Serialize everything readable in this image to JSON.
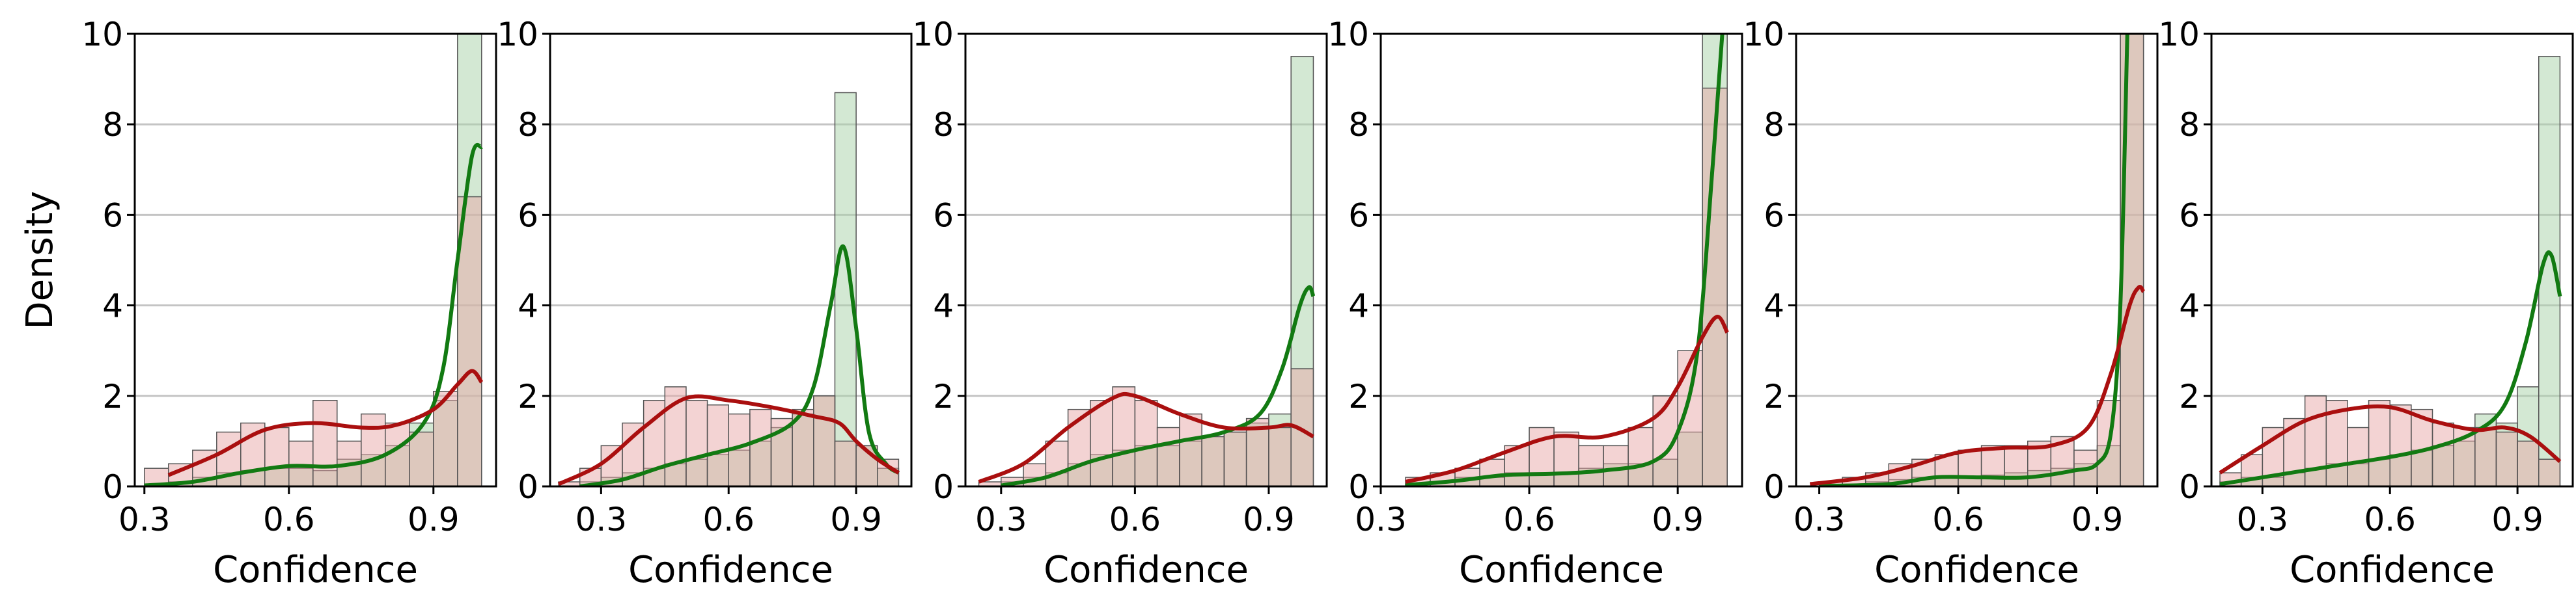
{
  "colors": {
    "red_fill": "#e8a7a7",
    "red_line": "#aa0f0f",
    "green_fill": "#a7d2a7",
    "green_line": "#127a12",
    "grid": "#c4c4c4",
    "bar_edge": "#555555"
  },
  "chart_data": [
    {
      "type": "histogram",
      "xlabel": "Confidence",
      "ylabel": "Density",
      "xlim": [
        0.28,
        1.03
      ],
      "ylim": [
        0,
        10
      ],
      "xticks": [
        "0.3",
        "0.6",
        "0.9"
      ],
      "yticks": [
        "0",
        "2",
        "4",
        "6",
        "8",
        "10"
      ],
      "grid": "y",
      "bins": [
        0.3,
        0.35,
        0.4,
        0.45,
        0.5,
        0.55,
        0.6,
        0.65,
        0.7,
        0.75,
        0.8,
        0.85,
        0.9,
        0.95,
        1.0
      ],
      "series": [
        {
          "color": "red",
          "hist": [
            0.4,
            0.5,
            0.8,
            1.2,
            1.4,
            1.3,
            1.0,
            1.9,
            1.0,
            1.6,
            1.4,
            1.2,
            2.1,
            6.4
          ],
          "kde": [
            [
              0.35,
              0.25
            ],
            [
              0.45,
              0.7
            ],
            [
              0.55,
              1.25
            ],
            [
              0.65,
              1.4
            ],
            [
              0.75,
              1.3
            ],
            [
              0.82,
              1.35
            ],
            [
              0.9,
              1.7
            ],
            [
              0.95,
              2.25
            ],
            [
              0.98,
              2.55
            ],
            [
              1.0,
              2.3
            ]
          ]
        },
        {
          "color": "green",
          "hist": [
            0.05,
            0.1,
            0.2,
            0.3,
            0.35,
            0.4,
            0.4,
            0.35,
            0.6,
            0.7,
            0.9,
            1.4,
            1.9,
            10.0
          ],
          "kde": [
            [
              0.3,
              0.02
            ],
            [
              0.4,
              0.1
            ],
            [
              0.5,
              0.3
            ],
            [
              0.6,
              0.45
            ],
            [
              0.7,
              0.45
            ],
            [
              0.8,
              0.7
            ],
            [
              0.88,
              1.4
            ],
            [
              0.92,
              2.6
            ],
            [
              0.95,
              5.0
            ],
            [
              0.98,
              7.3
            ],
            [
              1.0,
              7.5
            ]
          ]
        }
      ]
    },
    {
      "type": "histogram",
      "xlabel": "Confidence",
      "ylabel": "",
      "xlim": [
        0.18,
        1.03
      ],
      "ylim": [
        0,
        10
      ],
      "xticks": [
        "0.3",
        "0.6",
        "0.9"
      ],
      "yticks": [
        "0",
        "2",
        "4",
        "6",
        "8",
        "10"
      ],
      "grid": "y",
      "bins": [
        0.2,
        0.25,
        0.3,
        0.35,
        0.4,
        0.45,
        0.5,
        0.55,
        0.6,
        0.65,
        0.7,
        0.75,
        0.8,
        0.85,
        0.9,
        0.95,
        1.0
      ],
      "series": [
        {
          "color": "red",
          "hist": [
            0.1,
            0.4,
            0.9,
            1.4,
            1.9,
            2.2,
            1.9,
            1.8,
            1.6,
            1.7,
            1.5,
            1.7,
            2.0,
            1.0,
            0.9,
            0.6
          ],
          "kde": [
            [
              0.2,
              0.05
            ],
            [
              0.3,
              0.5
            ],
            [
              0.4,
              1.3
            ],
            [
              0.5,
              1.95
            ],
            [
              0.6,
              1.9
            ],
            [
              0.7,
              1.75
            ],
            [
              0.8,
              1.55
            ],
            [
              0.86,
              1.4
            ],
            [
              0.9,
              1.0
            ],
            [
              0.95,
              0.6
            ],
            [
              1.0,
              0.3
            ]
          ]
        },
        {
          "color": "green",
          "hist": [
            0.0,
            0.1,
            0.2,
            0.3,
            0.4,
            0.5,
            0.6,
            0.7,
            0.8,
            1.0,
            1.3,
            1.6,
            2.0,
            8.7,
            0.9,
            0.4
          ],
          "kde": [
            [
              0.25,
              0.0
            ],
            [
              0.35,
              0.15
            ],
            [
              0.45,
              0.45
            ],
            [
              0.55,
              0.7
            ],
            [
              0.65,
              0.95
            ],
            [
              0.75,
              1.4
            ],
            [
              0.8,
              2.2
            ],
            [
              0.84,
              4.0
            ],
            [
              0.87,
              5.3
            ],
            [
              0.9,
              3.5
            ],
            [
              0.93,
              1.2
            ],
            [
              0.97,
              0.5
            ],
            [
              1.0,
              0.3
            ]
          ]
        }
      ]
    },
    {
      "type": "histogram",
      "xlabel": "Confidence",
      "ylabel": "",
      "xlim": [
        0.22,
        1.03
      ],
      "ylim": [
        0,
        10
      ],
      "xticks": [
        "0.3",
        "0.6",
        "0.9"
      ],
      "yticks": [
        "0",
        "2",
        "4",
        "6",
        "8",
        "10"
      ],
      "grid": "y",
      "bins": [
        0.25,
        0.3,
        0.35,
        0.4,
        0.45,
        0.5,
        0.55,
        0.6,
        0.65,
        0.7,
        0.75,
        0.8,
        0.85,
        0.9,
        0.95,
        1.0
      ],
      "series": [
        {
          "color": "red",
          "hist": [
            0.1,
            0.2,
            0.5,
            1.0,
            1.7,
            1.9,
            2.2,
            1.9,
            1.3,
            1.6,
            1.1,
            1.2,
            1.5,
            1.3,
            2.6
          ],
          "kde": [
            [
              0.25,
              0.1
            ],
            [
              0.35,
              0.5
            ],
            [
              0.45,
              1.3
            ],
            [
              0.55,
              1.95
            ],
            [
              0.6,
              2.0
            ],
            [
              0.7,
              1.6
            ],
            [
              0.8,
              1.3
            ],
            [
              0.9,
              1.3
            ],
            [
              0.95,
              1.35
            ],
            [
              1.0,
              1.1
            ]
          ]
        },
        {
          "color": "green",
          "hist": [
            0.0,
            0.1,
            0.2,
            0.3,
            0.5,
            0.7,
            0.8,
            0.9,
            0.9,
            1.0,
            1.1,
            1.2,
            1.4,
            1.6,
            9.5
          ],
          "kde": [
            [
              0.3,
              0.02
            ],
            [
              0.4,
              0.2
            ],
            [
              0.5,
              0.55
            ],
            [
              0.6,
              0.8
            ],
            [
              0.7,
              1.0
            ],
            [
              0.8,
              1.2
            ],
            [
              0.88,
              1.6
            ],
            [
              0.93,
              2.6
            ],
            [
              0.97,
              4.0
            ],
            [
              0.99,
              4.4
            ],
            [
              1.0,
              4.2
            ]
          ]
        }
      ]
    },
    {
      "type": "histogram",
      "xlabel": "Confidence",
      "ylabel": "",
      "xlim": [
        0.3,
        1.03
      ],
      "ylim": [
        0,
        10
      ],
      "xticks": [
        "0.3",
        "0.6",
        "0.9"
      ],
      "yticks": [
        "0",
        "2",
        "4",
        "6",
        "8",
        "10"
      ],
      "grid": "y",
      "bins": [
        0.35,
        0.4,
        0.45,
        0.5,
        0.55,
        0.6,
        0.65,
        0.7,
        0.75,
        0.8,
        0.85,
        0.9,
        0.95,
        1.0
      ],
      "series": [
        {
          "color": "red",
          "hist": [
            0.2,
            0.3,
            0.4,
            0.6,
            0.9,
            1.3,
            1.2,
            0.9,
            0.9,
            1.3,
            2.0,
            3.0,
            8.8
          ],
          "kde": [
            [
              0.35,
              0.1
            ],
            [
              0.45,
              0.35
            ],
            [
              0.55,
              0.75
            ],
            [
              0.65,
              1.1
            ],
            [
              0.75,
              1.1
            ],
            [
              0.85,
              1.5
            ],
            [
              0.9,
              2.2
            ],
            [
              0.95,
              3.3
            ],
            [
              0.98,
              3.75
            ],
            [
              1.0,
              3.4
            ]
          ]
        },
        {
          "color": "green",
          "hist": [
            0.05,
            0.1,
            0.2,
            0.2,
            0.3,
            0.3,
            0.3,
            0.4,
            0.5,
            0.5,
            0.6,
            1.2,
            10.0
          ],
          "kde": [
            [
              0.35,
              0.03
            ],
            [
              0.45,
              0.12
            ],
            [
              0.55,
              0.25
            ],
            [
              0.65,
              0.28
            ],
            [
              0.75,
              0.35
            ],
            [
              0.85,
              0.55
            ],
            [
              0.9,
              1.2
            ],
            [
              0.94,
              3.0
            ],
            [
              0.97,
              7.0
            ],
            [
              0.99,
              10.0
            ]
          ]
        }
      ]
    },
    {
      "type": "histogram",
      "xlabel": "Confidence",
      "ylabel": "",
      "xlim": [
        0.25,
        1.03
      ],
      "ylim": [
        0,
        10
      ],
      "xticks": [
        "0.3",
        "0.6",
        "0.9"
      ],
      "yticks": [
        "0",
        "2",
        "4",
        "6",
        "8",
        "10"
      ],
      "grid": "y",
      "bins": [
        0.3,
        0.35,
        0.4,
        0.45,
        0.5,
        0.55,
        0.6,
        0.65,
        0.7,
        0.75,
        0.8,
        0.85,
        0.9,
        0.95,
        1.0
      ],
      "series": [
        {
          "color": "red",
          "hist": [
            0.1,
            0.2,
            0.3,
            0.5,
            0.6,
            0.7,
            0.8,
            0.9,
            0.9,
            1.0,
            1.1,
            0.8,
            1.9,
            10.0
          ],
          "kde": [
            [
              0.28,
              0.05
            ],
            [
              0.4,
              0.2
            ],
            [
              0.5,
              0.45
            ],
            [
              0.6,
              0.75
            ],
            [
              0.7,
              0.85
            ],
            [
              0.8,
              0.9
            ],
            [
              0.88,
              1.3
            ],
            [
              0.93,
              2.5
            ],
            [
              0.97,
              4.0
            ],
            [
              0.99,
              4.4
            ],
            [
              1.0,
              4.3
            ]
          ]
        },
        {
          "color": "green",
          "hist": [
            0.0,
            0.05,
            0.1,
            0.15,
            0.2,
            0.2,
            0.2,
            0.25,
            0.3,
            0.35,
            0.4,
            0.5,
            0.9,
            10.0
          ],
          "kde": [
            [
              0.3,
              0.01
            ],
            [
              0.45,
              0.05
            ],
            [
              0.55,
              0.2
            ],
            [
              0.65,
              0.2
            ],
            [
              0.75,
              0.2
            ],
            [
              0.85,
              0.35
            ],
            [
              0.9,
              0.5
            ],
            [
              0.93,
              1.2
            ],
            [
              0.95,
              4.0
            ],
            [
              0.965,
              10.0
            ]
          ]
        }
      ]
    },
    {
      "type": "histogram",
      "xlabel": "Confidence",
      "ylabel": "",
      "xlim": [
        0.18,
        1.03
      ],
      "ylim": [
        0,
        10
      ],
      "xticks": [
        "0.3",
        "0.6",
        "0.9"
      ],
      "yticks": [
        "0",
        "2",
        "4",
        "6",
        "8",
        "10"
      ],
      "grid": "y",
      "bins": [
        0.2,
        0.25,
        0.3,
        0.35,
        0.4,
        0.45,
        0.5,
        0.55,
        0.6,
        0.65,
        0.7,
        0.75,
        0.8,
        0.85,
        0.9,
        0.95,
        1.0
      ],
      "series": [
        {
          "color": "red",
          "hist": [
            0.3,
            0.7,
            1.3,
            1.5,
            2.0,
            1.9,
            1.3,
            1.9,
            1.8,
            1.7,
            1.4,
            1.3,
            1.3,
            1.2,
            1.0,
            0.6
          ],
          "kde": [
            [
              0.2,
              0.3
            ],
            [
              0.3,
              0.9
            ],
            [
              0.4,
              1.45
            ],
            [
              0.5,
              1.7
            ],
            [
              0.6,
              1.75
            ],
            [
              0.7,
              1.45
            ],
            [
              0.8,
              1.25
            ],
            [
              0.87,
              1.3
            ],
            [
              0.93,
              1.1
            ],
            [
              1.0,
              0.55
            ]
          ]
        },
        {
          "color": "green",
          "hist": [
            0.1,
            0.2,
            0.2,
            0.3,
            0.4,
            0.5,
            0.5,
            0.6,
            0.7,
            0.8,
            0.9,
            1.0,
            1.6,
            1.4,
            2.2,
            9.5
          ],
          "kde": [
            [
              0.2,
              0.05
            ],
            [
              0.3,
              0.2
            ],
            [
              0.4,
              0.35
            ],
            [
              0.5,
              0.5
            ],
            [
              0.6,
              0.65
            ],
            [
              0.7,
              0.85
            ],
            [
              0.8,
              1.2
            ],
            [
              0.87,
              1.8
            ],
            [
              0.92,
              3.2
            ],
            [
              0.96,
              4.9
            ],
            [
              0.98,
              5.1
            ],
            [
              1.0,
              4.2
            ]
          ]
        }
      ]
    }
  ]
}
